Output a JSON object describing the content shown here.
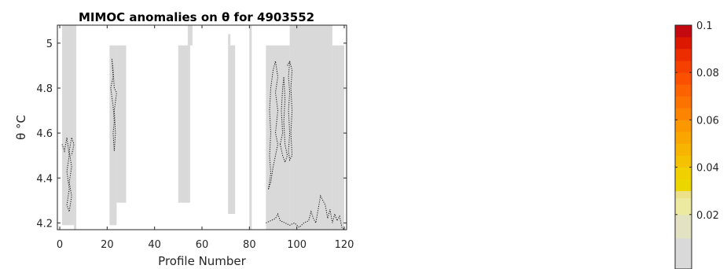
{
  "chart_data": {
    "type": "heatmap",
    "title": "MIMOC anomalies on θ  for 4903552",
    "xlabel": "Profile Number",
    "ylabel": "θ °C",
    "xlim": [
      -1,
      121
    ],
    "ylim": [
      4.17,
      5.08
    ],
    "xticks": [
      0,
      20,
      40,
      60,
      80,
      100,
      120
    ],
    "yticks": [
      4.2,
      4.4,
      4.6,
      4.8,
      5
    ],
    "ytick_labels": [
      "4.2",
      "4.4",
      "4.6",
      "4.8",
      "5"
    ],
    "grid": false,
    "no_data_color": "#ffffff",
    "background_color": "#d9d9d9",
    "data_regions": [
      {
        "x": [
          1,
          6
        ],
        "y": [
          4.19,
          5.08
        ]
      },
      {
        "x": [
          6,
          7
        ],
        "y": [
          4.17,
          5.08
        ]
      },
      {
        "x": [
          21,
          24
        ],
        "y": [
          4.19,
          4.99
        ]
      },
      {
        "x": [
          24,
          28
        ],
        "y": [
          4.29,
          4.99
        ]
      },
      {
        "x": [
          50,
          55
        ],
        "y": [
          4.29,
          4.99
        ]
      },
      {
        "x": [
          54,
          56
        ],
        "y": [
          4.99,
          5.08
        ]
      },
      {
        "x": [
          71,
          72
        ],
        "y": [
          4.99,
          5.04
        ]
      },
      {
        "x": [
          71,
          74
        ],
        "y": [
          4.24,
          4.99
        ]
      },
      {
        "x": [
          80,
          81
        ],
        "y": [
          4.17,
          5.08
        ]
      },
      {
        "x": [
          87,
          97
        ],
        "y": [
          4.17,
          4.99
        ]
      },
      {
        "x": [
          97,
          115
        ],
        "y": [
          4.17,
          5.08
        ]
      },
      {
        "x": [
          115,
          118
        ],
        "y": [
          4.17,
          4.99
        ]
      },
      {
        "x": [
          118,
          120
        ],
        "y": [
          4.17,
          4.99
        ]
      }
    ],
    "contours": [
      {
        "level": 0.02,
        "points": [
          [
            1,
            4.55
          ],
          [
            2,
            4.52
          ],
          [
            3,
            4.58
          ],
          [
            4,
            4.5
          ],
          [
            3,
            4.43
          ],
          [
            4,
            4.35
          ],
          [
            3,
            4.28
          ],
          [
            4,
            4.25
          ],
          [
            5,
            4.32
          ],
          [
            4,
            4.38
          ],
          [
            5,
            4.45
          ],
          [
            4,
            4.52
          ],
          [
            5,
            4.58
          ],
          [
            6,
            4.55
          ],
          [
            5,
            4.5
          ]
        ]
      },
      {
        "level": 0.02,
        "points": [
          [
            22,
            4.93
          ],
          [
            22.5,
            4.85
          ],
          [
            21.5,
            4.8
          ],
          [
            22.5,
            4.72
          ],
          [
            23,
            4.65
          ],
          [
            22.5,
            4.6
          ],
          [
            23,
            4.52
          ],
          [
            23.5,
            4.6
          ],
          [
            23,
            4.7
          ],
          [
            24,
            4.78
          ],
          [
            23,
            4.8
          ],
          [
            22.5,
            4.88
          ],
          [
            22,
            4.93
          ]
        ]
      },
      {
        "level": 0.02,
        "points": [
          [
            88,
            4.35
          ],
          [
            89,
            4.42
          ],
          [
            88.5,
            4.5
          ],
          [
            89,
            4.6
          ],
          [
            88.5,
            4.7
          ],
          [
            89,
            4.8
          ],
          [
            90,
            4.88
          ],
          [
            91,
            4.92
          ],
          [
            92,
            4.85
          ],
          [
            91,
            4.78
          ],
          [
            92,
            4.7
          ],
          [
            91,
            4.6
          ],
          [
            92,
            4.55
          ],
          [
            91,
            4.5
          ],
          [
            90,
            4.45
          ],
          [
            89,
            4.38
          ],
          [
            88,
            4.35
          ]
        ]
      },
      {
        "level": 0.02,
        "points": [
          [
            93,
            4.55
          ],
          [
            94,
            4.6
          ],
          [
            93.5,
            4.7
          ],
          [
            94,
            4.8
          ],
          [
            94.5,
            4.85
          ],
          [
            95,
            4.75
          ],
          [
            94.5,
            4.65
          ],
          [
            95,
            4.55
          ],
          [
            96,
            4.5
          ],
          [
            95,
            4.47
          ],
          [
            94,
            4.5
          ],
          [
            93,
            4.55
          ]
        ]
      },
      {
        "level": 0.02,
        "points": [
          [
            96,
            4.9
          ],
          [
            97,
            4.92
          ],
          [
            96.5,
            4.85
          ],
          [
            97,
            4.78
          ],
          [
            96.5,
            4.7
          ],
          [
            97,
            4.6
          ],
          [
            96.5,
            4.52
          ],
          [
            97,
            4.48
          ],
          [
            98,
            4.5
          ],
          [
            97.5,
            4.6
          ],
          [
            98,
            4.7
          ],
          [
            97.5,
            4.8
          ],
          [
            98,
            4.88
          ],
          [
            97,
            4.92
          ]
        ]
      },
      {
        "level": 0.02,
        "points": [
          [
            87,
            4.2
          ],
          [
            89,
            4.21
          ],
          [
            91,
            4.22
          ],
          [
            92,
            4.24
          ],
          [
            93,
            4.21
          ],
          [
            95,
            4.2
          ],
          [
            97,
            4.19
          ],
          [
            99,
            4.2
          ],
          [
            101,
            4.18
          ],
          [
            103,
            4.2
          ],
          [
            105,
            4.21
          ],
          [
            106,
            4.25
          ],
          [
            107,
            4.22
          ],
          [
            108,
            4.2
          ],
          [
            109,
            4.26
          ],
          [
            110,
            4.32
          ],
          [
            111,
            4.3
          ],
          [
            112,
            4.28
          ],
          [
            113,
            4.22
          ],
          [
            114,
            4.26
          ],
          [
            115,
            4.2
          ],
          [
            116,
            4.24
          ],
          [
            117,
            4.21
          ],
          [
            118,
            4.23
          ],
          [
            119,
            4.18
          ],
          [
            120,
            4.17
          ]
        ]
      }
    ],
    "colorbar": {
      "ticks": [
        0.02,
        0.04,
        0.06,
        0.08,
        0.1
      ],
      "tick_labels": [
        "0.02",
        "0.04",
        "0.06",
        "0.08",
        "0.1"
      ],
      "range": [
        -0.003,
        0.1
      ],
      "bands": [
        {
          "from": -0.003,
          "to": 0.01,
          "color": "#d9d9d9"
        },
        {
          "from": 0.01,
          "to": 0.02,
          "color": "#e3e3c4"
        },
        {
          "from": 0.02,
          "to": 0.027,
          "color": "#ece9a1"
        },
        {
          "from": 0.027,
          "to": 0.03,
          "color": "#ede08a"
        },
        {
          "from": 0.03,
          "to": 0.035,
          "color": "#ecd600"
        },
        {
          "from": 0.035,
          "to": 0.04,
          "color": "#f0d000"
        },
        {
          "from": 0.04,
          "to": 0.045,
          "color": "#f4c200"
        },
        {
          "from": 0.045,
          "to": 0.05,
          "color": "#f7b400"
        },
        {
          "from": 0.05,
          "to": 0.055,
          "color": "#f9a600"
        },
        {
          "from": 0.055,
          "to": 0.06,
          "color": "#fb9800"
        },
        {
          "from": 0.06,
          "to": 0.065,
          "color": "#fc8400"
        },
        {
          "from": 0.065,
          "to": 0.07,
          "color": "#fd7300"
        },
        {
          "from": 0.07,
          "to": 0.075,
          "color": "#fd6200"
        },
        {
          "from": 0.075,
          "to": 0.08,
          "color": "#fb5000"
        },
        {
          "from": 0.08,
          "to": 0.085,
          "color": "#f54000"
        },
        {
          "from": 0.085,
          "to": 0.09,
          "color": "#ec2d00"
        },
        {
          "from": 0.09,
          "to": 0.095,
          "color": "#dc1800"
        },
        {
          "from": 0.095,
          "to": 0.1,
          "color": "#c40a10"
        }
      ]
    }
  }
}
